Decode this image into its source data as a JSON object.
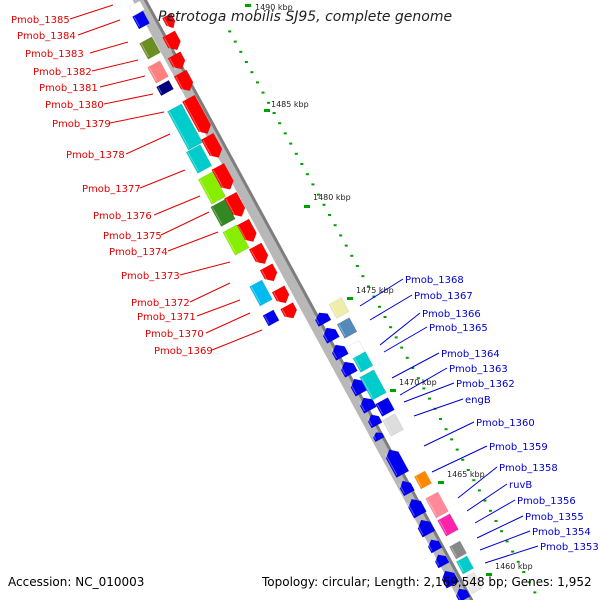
{
  "title": "Petrotoga mobilis SJ95, complete genome",
  "footer": {
    "accession": "Accession: NC_010003",
    "topology": "Topology: circular; Length: 2,169,548 bp; Genes: 1,952"
  },
  "colors": {
    "left_label": "#e00000",
    "right_label": "#0000cc",
    "tick": "#00a000",
    "backbone": "#9a9a9a"
  },
  "scale_labels": [
    "1490 kbp",
    "1485 kbp",
    "1480 kbp",
    "1475 kbp",
    "1470 kbp",
    "1465 kbp",
    "1460 kbp"
  ],
  "left_labels": [
    "Pmob_1385",
    "Pmob_1384",
    "Pmob_1383",
    "Pmob_1382",
    "Pmob_1381",
    "Pmob_1380",
    "Pmob_1379",
    "Pmob_1378",
    "Pmob_1377",
    "Pmob_1376",
    "Pmob_1375",
    "Pmob_1374",
    "Pmob_1373",
    "Pmob_1372",
    "Pmob_1371",
    "Pmob_1370",
    "Pmob_1369"
  ],
  "right_labels": [
    "Pmob_1368",
    "Pmob_1367",
    "Pmob_1366",
    "Pmob_1365",
    "Pmob_1364",
    "Pmob_1363",
    "Pmob_1362",
    "engB",
    "Pmob_1360",
    "Pmob_1359",
    "Pmob_1358",
    "ruvB",
    "Pmob_1356",
    "Pmob_1355",
    "Pmob_1354",
    "Pmob_1353"
  ]
}
